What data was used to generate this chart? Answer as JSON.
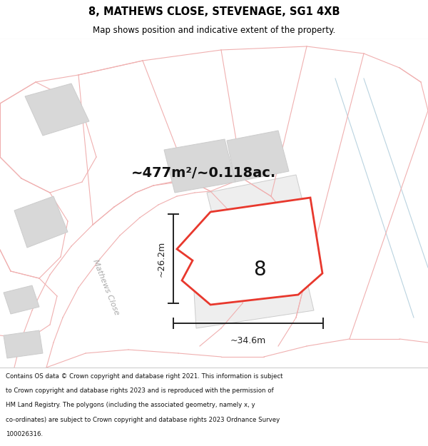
{
  "title_line1": "8, MATHEWS CLOSE, STEVENAGE, SG1 4XB",
  "title_line2": "Map shows position and indicative extent of the property.",
  "area_text": "~477m²/~0.118ac.",
  "property_number": "8",
  "dim_width": "~34.6m",
  "dim_height": "~26.2m",
  "road_label": "Mathews Close",
  "footer_lines": [
    "Contains OS data © Crown copyright and database right 2021. This information is subject",
    "to Crown copyright and database rights 2023 and is reproduced with the permission of",
    "HM Land Registry. The polygons (including the associated geometry, namely x, y",
    "co-ordinates) are subject to Crown copyright and database rights 2023 Ordnance Survey",
    "100026316."
  ],
  "map_bg": "#ffffff",
  "header_bg": "#ffffff",
  "footer_bg": "#ffffff",
  "property_fill": "#ffffff",
  "property_edge": "#e8382d",
  "plot_line_color": "#f0b0b0",
  "building_fill": "#d8d8d8",
  "building_edge": "#cccccc",
  "dim_color": "#222222",
  "road_label_color": "#aaaaaa",
  "light_blue": "#a8c8d8",
  "area_text_color": "#111111",
  "separator_color": "#cccccc"
}
